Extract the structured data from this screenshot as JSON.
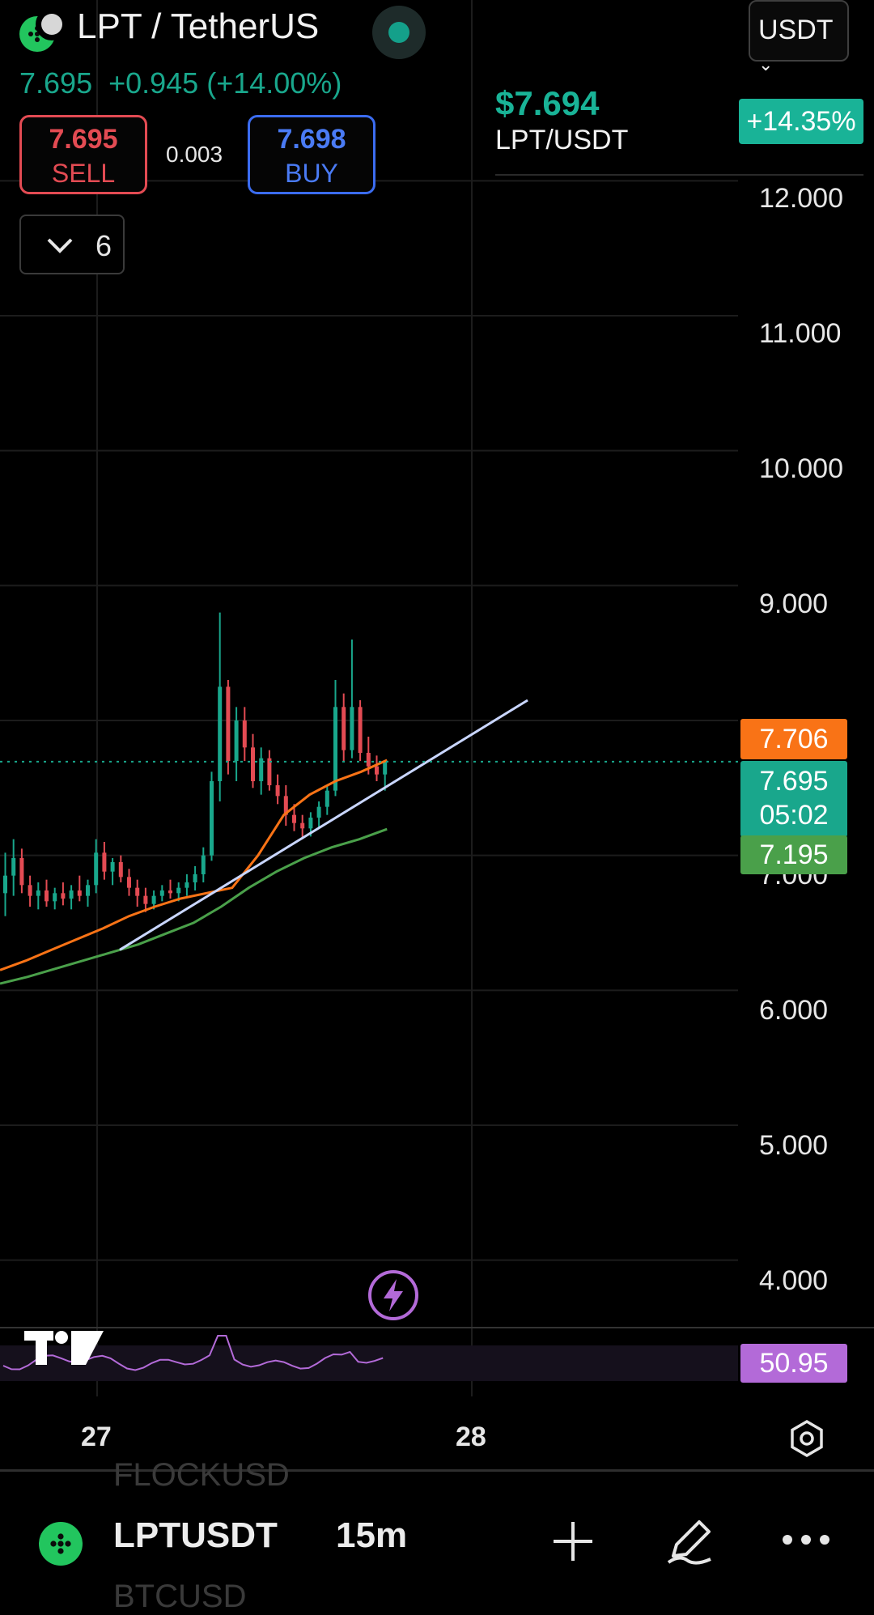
{
  "header": {
    "title": "LPT / TetherUS",
    "quote_line": "7.695  +0.945 (+14.00%)",
    "sell": {
      "price": "7.695",
      "label": "SELL"
    },
    "spread": "0.003",
    "buy": {
      "price": "7.698",
      "label": "BUY"
    },
    "interval_count": "6",
    "currency": "USDT"
  },
  "ticker_panel": {
    "price": "$7.694",
    "pair": "LPT/USDT",
    "change_pct": "+14.35%"
  },
  "price_axis": {
    "ticks": [
      "12.000",
      "11.000",
      "10.000",
      "9.000",
      "7.000",
      "6.000",
      "5.000",
      "4.000"
    ],
    "tags": {
      "ma_fast": "7.706",
      "last_price": "7.695",
      "countdown": "05:02",
      "ma_slow": "7.195",
      "rsi": "50.95"
    }
  },
  "time_axis": {
    "labels": [
      "27",
      "28"
    ]
  },
  "bottom_bar": {
    "symbol": "LPTUSDT",
    "timeframe": "15m",
    "ghost_above": "FLOCKUSD",
    "ghost_below": "BTCUSD"
  },
  "colors": {
    "up": "#19a78c",
    "down": "#e34b53",
    "ma_fast": "#f97316",
    "ma_slow": "#4aa04a",
    "trendline": "#c9d6ff",
    "rsi": "#b36ad8"
  },
  "icons": [
    "coin-logo-icon",
    "live-dot-icon",
    "chevron-down-icon",
    "lightning-icon",
    "tradingview-logo",
    "gear-hexagon-icon",
    "plus-icon",
    "draw-pen-icon",
    "more-dots-icon"
  ],
  "chart_data": {
    "type": "candlestick",
    "interval": "15m",
    "ylim": [
      3.5,
      12.8
    ],
    "x_labels": [
      "27",
      "28"
    ],
    "last_price": 7.695,
    "price_range_visible": {
      "low": 6.45,
      "high": 8.8
    },
    "ma_fast_last": 7.706,
    "ma_slow_last": 7.195,
    "rsi_last": 50.95,
    "candles": [
      [
        6.72,
        7.02,
        6.55,
        6.85
      ],
      [
        6.85,
        7.12,
        6.7,
        6.98
      ],
      [
        6.98,
        7.05,
        6.72,
        6.78
      ],
      [
        6.78,
        6.85,
        6.62,
        6.7
      ],
      [
        6.7,
        6.8,
        6.6,
        6.74
      ],
      [
        6.74,
        6.82,
        6.62,
        6.66
      ],
      [
        6.66,
        6.76,
        6.6,
        6.72
      ],
      [
        6.72,
        6.8,
        6.63,
        6.68
      ],
      [
        6.68,
        6.78,
        6.6,
        6.74
      ],
      [
        6.74,
        6.85,
        6.66,
        6.7
      ],
      [
        6.7,
        6.82,
        6.62,
        6.78
      ],
      [
        6.78,
        7.12,
        6.72,
        7.02
      ],
      [
        7.02,
        7.1,
        6.82,
        6.88
      ],
      [
        6.88,
        6.98,
        6.78,
        6.95
      ],
      [
        6.95,
        7.0,
        6.8,
        6.84
      ],
      [
        6.84,
        6.9,
        6.7,
        6.76
      ],
      [
        6.76,
        6.82,
        6.62,
        6.7
      ],
      [
        6.7,
        6.76,
        6.58,
        6.64
      ],
      [
        6.64,
        6.74,
        6.6,
        6.7
      ],
      [
        6.7,
        6.78,
        6.66,
        6.74
      ],
      [
        6.74,
        6.82,
        6.68,
        6.72
      ],
      [
        6.72,
        6.8,
        6.66,
        6.76
      ],
      [
        6.76,
        6.86,
        6.7,
        6.8
      ],
      [
        6.8,
        6.92,
        6.74,
        6.86
      ],
      [
        6.86,
        7.06,
        6.8,
        7.0
      ],
      [
        7.0,
        7.62,
        6.96,
        7.55
      ],
      [
        7.55,
        8.8,
        7.4,
        8.25
      ],
      [
        8.25,
        8.3,
        7.6,
        7.7
      ],
      [
        7.7,
        8.1,
        7.55,
        8.0
      ],
      [
        8.0,
        8.1,
        7.7,
        7.8
      ],
      [
        7.8,
        7.9,
        7.5,
        7.55
      ],
      [
        7.55,
        7.8,
        7.45,
        7.72
      ],
      [
        7.72,
        7.78,
        7.48,
        7.52
      ],
      [
        7.52,
        7.6,
        7.38,
        7.44
      ],
      [
        7.44,
        7.52,
        7.22,
        7.3
      ],
      [
        7.3,
        7.38,
        7.18,
        7.24
      ],
      [
        7.24,
        7.3,
        7.12,
        7.2
      ],
      [
        7.2,
        7.32,
        7.14,
        7.28
      ],
      [
        7.28,
        7.4,
        7.2,
        7.36
      ],
      [
        7.36,
        7.52,
        7.3,
        7.48
      ],
      [
        7.48,
        8.3,
        7.44,
        8.1
      ],
      [
        8.1,
        8.2,
        7.7,
        7.78
      ],
      [
        7.78,
        8.6,
        7.72,
        8.1
      ],
      [
        8.1,
        8.15,
        7.7,
        7.76
      ],
      [
        7.76,
        7.88,
        7.6,
        7.66
      ],
      [
        7.66,
        7.74,
        7.55,
        7.6
      ],
      [
        7.6,
        7.7,
        7.48,
        7.695
      ]
    ],
    "ma_fast": [
      6.15,
      6.22,
      6.3,
      6.38,
      6.46,
      6.55,
      6.62,
      6.68,
      6.72,
      6.76,
      7.0,
      7.3,
      7.45,
      7.55,
      7.62,
      7.706
    ],
    "ma_slow": [
      6.05,
      6.1,
      6.16,
      6.22,
      6.28,
      6.34,
      6.42,
      6.5,
      6.62,
      6.76,
      6.88,
      6.98,
      7.06,
      7.12,
      7.195
    ],
    "trendline": {
      "from": 6.3,
      "to": 8.15
    }
  }
}
